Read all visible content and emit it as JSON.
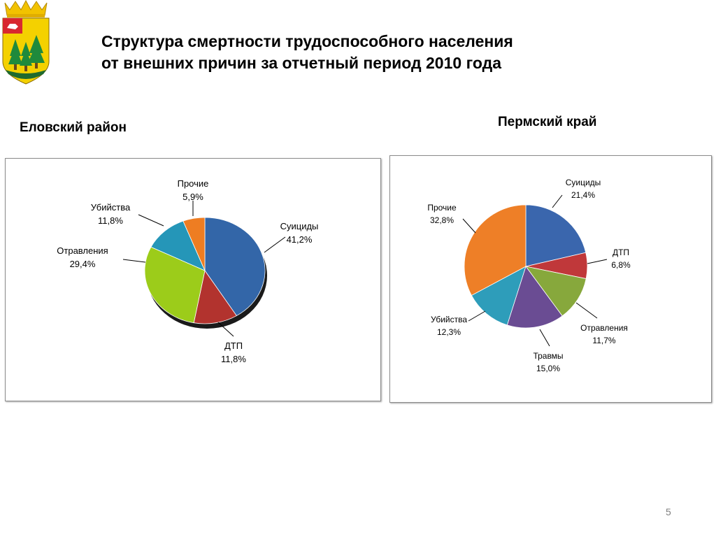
{
  "title": {
    "line1": "Структура смертности трудоспособного населения",
    "line2": "от внешних причин за отчетный период 2010 года"
  },
  "page_number": "5",
  "logo": {
    "icon": "coat-of-arms-icon",
    "colors": {
      "gold": "#f2c200",
      "green": "#1f8a3c",
      "red": "#d8282f"
    }
  },
  "chart_data": [
    {
      "type": "pie",
      "title": "Еловский район",
      "slices": [
        {
          "label": "Суициды",
          "value": 41.2,
          "value_label": "41,2%",
          "color": "#3366a8"
        },
        {
          "label": "ДТП",
          "value": 11.8,
          "value_label": "11,8%",
          "color": "#b2332e"
        },
        {
          "label": "Отравления",
          "value": 29.4,
          "value_label": "29,4%",
          "color": "#9ccc1a"
        },
        {
          "label": "Убийства",
          "value": 11.8,
          "value_label": "11,8%",
          "color": "#2596b8"
        },
        {
          "label": "Прочие",
          "value": 5.9,
          "value_label": "5,9%",
          "color": "#ee7d22"
        }
      ]
    },
    {
      "type": "pie",
      "title": "Пермский край",
      "slices": [
        {
          "label": "Суициды",
          "value": 21.4,
          "value_label": "21,4%",
          "color": "#3a66ad"
        },
        {
          "label": "ДТП",
          "value": 6.8,
          "value_label": "6,8%",
          "color": "#c0383a"
        },
        {
          "label": "Отравления",
          "value": 11.7,
          "value_label": "11,7%",
          "color": "#87a83c"
        },
        {
          "label": "Травмы",
          "value": 15.0,
          "value_label": "15,0%",
          "color": "#6a4c93"
        },
        {
          "label": "Убийства",
          "value": 12.3,
          "value_label": "12,3%",
          "color": "#2e9dba"
        },
        {
          "label": "Прочие",
          "value": 32.8,
          "value_label": "32,8%",
          "color": "#ee7f27"
        }
      ]
    }
  ]
}
